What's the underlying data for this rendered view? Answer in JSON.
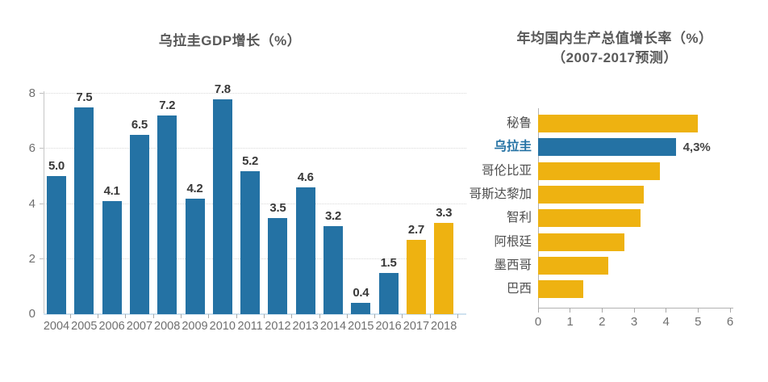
{
  "colors": {
    "actual": "#2472a4",
    "forecast": "#eeb211",
    "grid": "#d9d9d9",
    "axis": "#b3b3b3",
    "baseline": "#cfe2ef",
    "title_text": "#595959",
    "value_text": "#383838",
    "tick_text": "#6f6f6f",
    "highlight_text": "#2472a4"
  },
  "chart_data": [
    {
      "type": "bar",
      "title": "乌拉圭GDP增长（%）",
      "categories": [
        "2004",
        "2005",
        "2006",
        "2007",
        "2008",
        "2009",
        "2010",
        "2011",
        "2012",
        "2013",
        "2014",
        "2015",
        "2016",
        "2017",
        "2018"
      ],
      "values": [
        5.0,
        7.5,
        4.1,
        6.5,
        7.2,
        4.2,
        7.8,
        5.2,
        3.5,
        4.6,
        3.2,
        0.4,
        1.5,
        2.7,
        3.3
      ],
      "value_labels": [
        "5.0",
        "7.5",
        "4.1",
        "6.5",
        "7.2",
        "4.2",
        "7.8",
        "5.2",
        "3.5",
        "4.6",
        "3.2",
        "0.4",
        "1.5",
        "2.7",
        "3.3"
      ],
      "bar_types": [
        "actual",
        "actual",
        "actual",
        "actual",
        "actual",
        "actual",
        "actual",
        "actual",
        "actual",
        "actual",
        "actual",
        "actual",
        "actual",
        "forecast",
        "forecast"
      ],
      "xlabel": "",
      "ylabel": "",
      "ylim": [
        0,
        8
      ],
      "yticks": [
        0,
        2,
        4,
        6,
        8
      ],
      "grid": "horizontal dotted",
      "legend": "none"
    },
    {
      "type": "bar-horizontal",
      "title": "年均国内生产总值增长率（%）",
      "subtitle": "（2007-2017预测）",
      "categories": [
        "秘鲁",
        "乌拉圭",
        "哥伦比亚",
        "哥斯达黎加",
        "智利",
        "阿根廷",
        "墨西哥",
        "巴西"
      ],
      "values": [
        5.0,
        4.3,
        3.8,
        3.3,
        3.2,
        2.7,
        2.2,
        1.4
      ],
      "bar_types": [
        "forecast",
        "actual",
        "forecast",
        "forecast",
        "forecast",
        "forecast",
        "forecast",
        "forecast"
      ],
      "highlight_index": 1,
      "highlight_annotation": "4,3%",
      "xlabel": "",
      "ylabel": "",
      "xlim": [
        0,
        6
      ],
      "xticks": [
        0,
        1,
        2,
        3,
        4,
        5,
        6
      ],
      "grid": "off",
      "legend": "none"
    }
  ]
}
